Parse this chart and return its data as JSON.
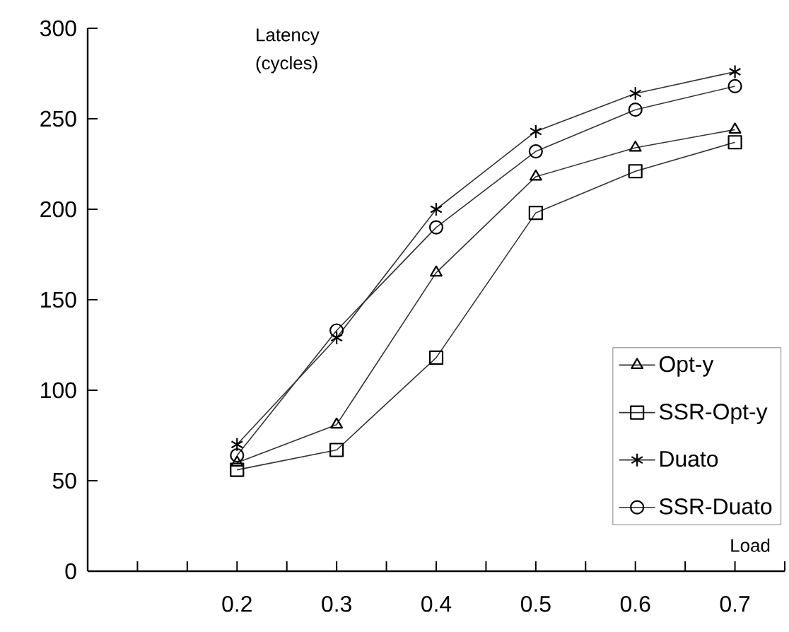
{
  "chart_data": {
    "type": "line",
    "xlabel": "Load",
    "ylabel": "Latency (cycles)",
    "x": [
      0.2,
      0.3,
      0.4,
      0.5,
      0.6,
      0.7
    ],
    "series": [
      {
        "name": "Opt-y",
        "color": "#333333",
        "marker": "triangle",
        "values": [
          60,
          81,
          165,
          218,
          234,
          244
        ]
      },
      {
        "name": "SSR-Opt-y",
        "color": "#333333",
        "marker": "square",
        "values": [
          56,
          67,
          118,
          198,
          221,
          237
        ]
      },
      {
        "name": "Duato",
        "color": "#333333",
        "marker": "cross",
        "values": [
          70,
          129,
          200,
          243,
          264,
          276
        ]
      },
      {
        "name": "SSR-Duato",
        "color": "#333333",
        "marker": "circle",
        "values": [
          64,
          133,
          190,
          232,
          255,
          268
        ]
      }
    ],
    "xlim": [
      0.05,
      0.75
    ],
    "ylim": [
      0,
      300
    ],
    "xticks": [
      {
        "value": 0.1,
        "label": null
      },
      {
        "value": 0.15,
        "label": null
      },
      0.2,
      {
        "value": 0.25,
        "label": null
      },
      0.3,
      {
        "value": 0.35,
        "label": null
      },
      0.4,
      {
        "value": 0.45,
        "label": null
      },
      0.5,
      {
        "value": 0.55,
        "label": null
      },
      0.6,
      {
        "value": 0.65,
        "label": null
      },
      0.7,
      {
        "value": 0.75,
        "label": null
      }
    ],
    "yticks": [
      0,
      50,
      100,
      150,
      200,
      250,
      300
    ],
    "grid": false,
    "legend": "bottom right",
    "line_style": "solid"
  }
}
